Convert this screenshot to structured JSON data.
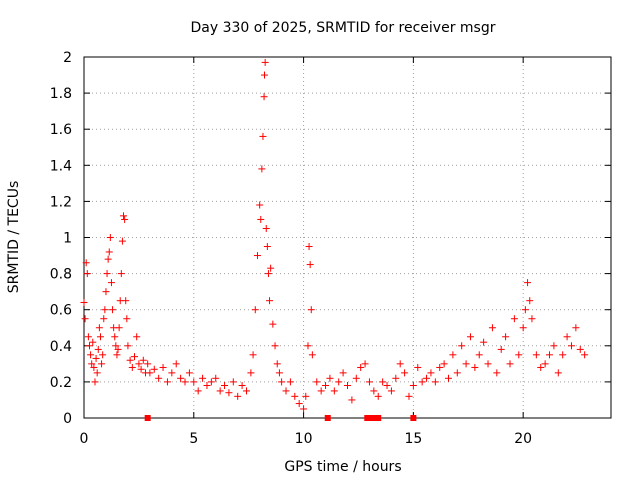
{
  "chart_data": {
    "type": "scatter",
    "title": "Day 330 of 2025, SRMTID for receiver msgr",
    "xlabel": "GPS time / hours",
    "ylabel": "SRMTID / TECUs",
    "xlim": [
      0,
      24
    ],
    "ylim": [
      0,
      2
    ],
    "x_ticks": [
      0,
      5,
      10,
      15,
      20
    ],
    "x_tick_labels": [
      "0",
      "5",
      "10",
      "15",
      "20"
    ],
    "y_ticks": [
      0,
      0.2,
      0.4,
      0.6,
      0.8,
      1,
      1.2,
      1.4,
      1.6,
      1.8,
      2
    ],
    "y_tick_labels": [
      "0",
      "0.2",
      "0.4",
      "0.6",
      "0.8",
      "1",
      "1.2",
      "1.4",
      "1.6",
      "1.8",
      "2"
    ],
    "grid": true,
    "marker": "+",
    "colors": {
      "series": "#ff0000",
      "axis": "#000000",
      "grid": "#a0a0a0"
    },
    "series": [
      {
        "name": "SRMTID",
        "points": [
          [
            0.0,
            0.64
          ],
          [
            0.05,
            0.55
          ],
          [
            0.1,
            0.86
          ],
          [
            0.15,
            0.8
          ],
          [
            0.2,
            0.45
          ],
          [
            0.25,
            0.4
          ],
          [
            0.3,
            0.35
          ],
          [
            0.35,
            0.3
          ],
          [
            0.4,
            0.42
          ],
          [
            0.45,
            0.28
          ],
          [
            0.5,
            0.2
          ],
          [
            0.55,
            0.33
          ],
          [
            0.6,
            0.25
          ],
          [
            0.65,
            0.38
          ],
          [
            0.7,
            0.5
          ],
          [
            0.75,
            0.45
          ],
          [
            0.8,
            0.3
          ],
          [
            0.85,
            0.35
          ],
          [
            0.9,
            0.55
          ],
          [
            0.95,
            0.6
          ],
          [
            1.0,
            0.7
          ],
          [
            1.05,
            0.8
          ],
          [
            1.1,
            0.88
          ],
          [
            1.15,
            0.92
          ],
          [
            1.2,
            1.0
          ],
          [
            1.25,
            0.75
          ],
          [
            1.3,
            0.6
          ],
          [
            1.35,
            0.5
          ],
          [
            1.4,
            0.45
          ],
          [
            1.45,
            0.4
          ],
          [
            1.5,
            0.35
          ],
          [
            1.55,
            0.38
          ],
          [
            1.6,
            0.5
          ],
          [
            1.65,
            0.65
          ],
          [
            1.7,
            0.8
          ],
          [
            1.75,
            0.98
          ],
          [
            1.8,
            1.12
          ],
          [
            1.85,
            1.1
          ],
          [
            1.9,
            0.65
          ],
          [
            1.95,
            0.55
          ],
          [
            2.0,
            0.4
          ],
          [
            2.1,
            0.32
          ],
          [
            2.2,
            0.28
          ],
          [
            2.3,
            0.34
          ],
          [
            2.4,
            0.45
          ],
          [
            2.5,
            0.3
          ],
          [
            2.6,
            0.27
          ],
          [
            2.7,
            0.32
          ],
          [
            2.8,
            0.25
          ],
          [
            2.9,
            0.3
          ],
          [
            3.0,
            0.25
          ],
          [
            3.2,
            0.27
          ],
          [
            3.4,
            0.22
          ],
          [
            3.6,
            0.28
          ],
          [
            3.8,
            0.2
          ],
          [
            4.0,
            0.25
          ],
          [
            4.2,
            0.3
          ],
          [
            4.4,
            0.22
          ],
          [
            4.6,
            0.2
          ],
          [
            4.8,
            0.25
          ],
          [
            5.0,
            0.2
          ],
          [
            5.2,
            0.15
          ],
          [
            5.4,
            0.22
          ],
          [
            5.6,
            0.18
          ],
          [
            5.8,
            0.2
          ],
          [
            6.0,
            0.22
          ],
          [
            6.2,
            0.15
          ],
          [
            6.4,
            0.18
          ],
          [
            6.6,
            0.14
          ],
          [
            6.8,
            0.2
          ],
          [
            7.0,
            0.12
          ],
          [
            7.2,
            0.18
          ],
          [
            7.4,
            0.15
          ],
          [
            7.6,
            0.25
          ],
          [
            7.7,
            0.35
          ],
          [
            7.8,
            0.6
          ],
          [
            7.9,
            0.9
          ],
          [
            8.0,
            1.18
          ],
          [
            8.05,
            1.1
          ],
          [
            8.1,
            1.38
          ],
          [
            8.15,
            1.56
          ],
          [
            8.2,
            1.78
          ],
          [
            8.22,
            1.9
          ],
          [
            8.25,
            1.97
          ],
          [
            8.3,
            1.05
          ],
          [
            8.35,
            0.95
          ],
          [
            8.4,
            0.8
          ],
          [
            8.45,
            0.65
          ],
          [
            8.5,
            0.83
          ],
          [
            8.6,
            0.52
          ],
          [
            8.7,
            0.4
          ],
          [
            8.8,
            0.3
          ],
          [
            8.9,
            0.25
          ],
          [
            9.0,
            0.2
          ],
          [
            9.2,
            0.15
          ],
          [
            9.4,
            0.2
          ],
          [
            9.6,
            0.12
          ],
          [
            9.8,
            0.08
          ],
          [
            10.0,
            0.05
          ],
          [
            10.1,
            0.12
          ],
          [
            10.2,
            0.4
          ],
          [
            10.25,
            0.95
          ],
          [
            10.3,
            0.85
          ],
          [
            10.35,
            0.6
          ],
          [
            10.4,
            0.35
          ],
          [
            10.6,
            0.2
          ],
          [
            10.8,
            0.15
          ],
          [
            11.0,
            0.18
          ],
          [
            11.2,
            0.22
          ],
          [
            11.4,
            0.15
          ],
          [
            11.6,
            0.2
          ],
          [
            11.8,
            0.25
          ],
          [
            12.0,
            0.18
          ],
          [
            12.2,
            0.1
          ],
          [
            12.4,
            0.22
          ],
          [
            12.6,
            0.28
          ],
          [
            12.8,
            0.3
          ],
          [
            13.0,
            0.2
          ],
          [
            13.2,
            0.15
          ],
          [
            13.4,
            0.12
          ],
          [
            13.6,
            0.2
          ],
          [
            13.8,
            0.18
          ],
          [
            14.0,
            0.15
          ],
          [
            14.2,
            0.22
          ],
          [
            14.4,
            0.3
          ],
          [
            14.6,
            0.25
          ],
          [
            14.8,
            0.12
          ],
          [
            15.0,
            0.18
          ],
          [
            15.2,
            0.28
          ],
          [
            15.4,
            0.2
          ],
          [
            15.6,
            0.22
          ],
          [
            15.8,
            0.25
          ],
          [
            16.0,
            0.2
          ],
          [
            16.2,
            0.28
          ],
          [
            16.4,
            0.3
          ],
          [
            16.6,
            0.22
          ],
          [
            16.8,
            0.35
          ],
          [
            17.0,
            0.25
          ],
          [
            17.2,
            0.4
          ],
          [
            17.4,
            0.3
          ],
          [
            17.6,
            0.45
          ],
          [
            17.8,
            0.28
          ],
          [
            18.0,
            0.35
          ],
          [
            18.2,
            0.42
          ],
          [
            18.4,
            0.3
          ],
          [
            18.6,
            0.5
          ],
          [
            18.8,
            0.25
          ],
          [
            19.0,
            0.38
          ],
          [
            19.2,
            0.45
          ],
          [
            19.4,
            0.3
          ],
          [
            19.6,
            0.55
          ],
          [
            19.8,
            0.35
          ],
          [
            20.0,
            0.5
          ],
          [
            20.1,
            0.6
          ],
          [
            20.2,
            0.75
          ],
          [
            20.3,
            0.65
          ],
          [
            20.4,
            0.55
          ],
          [
            20.6,
            0.35
          ],
          [
            20.8,
            0.28
          ],
          [
            21.0,
            0.3
          ],
          [
            21.2,
            0.35
          ],
          [
            21.4,
            0.4
          ],
          [
            21.6,
            0.25
          ],
          [
            21.8,
            0.35
          ],
          [
            22.0,
            0.45
          ],
          [
            22.2,
            0.4
          ],
          [
            22.4,
            0.5
          ],
          [
            22.6,
            0.38
          ],
          [
            22.8,
            0.35
          ]
        ]
      },
      {
        "name": "zero-markers",
        "points": [
          [
            2.9,
            0
          ],
          [
            11.1,
            0
          ],
          [
            12.9,
            0
          ],
          [
            13.0,
            0
          ],
          [
            13.1,
            0
          ],
          [
            13.2,
            0
          ],
          [
            13.3,
            0
          ],
          [
            13.4,
            0
          ],
          [
            15.0,
            0
          ]
        ]
      }
    ]
  }
}
